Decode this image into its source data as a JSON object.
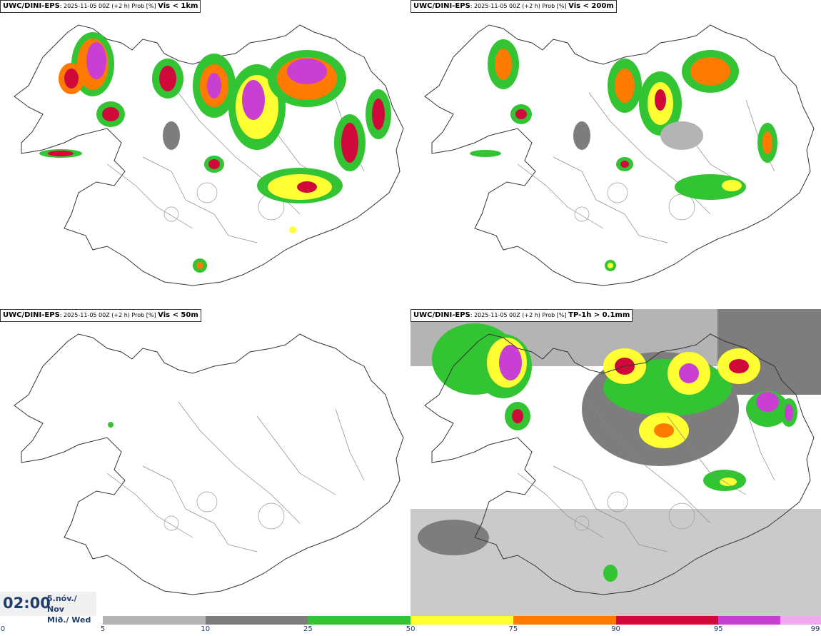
{
  "panels": [
    {
      "model": "UWC/DINI-EPS",
      "meta": ": 2025-11-05 00Z (+2 h) Prob [%] ",
      "variable": "Vis < 1km"
    },
    {
      "model": "UWC/DINI-EPS",
      "meta": ": 2025-11-05 00Z (+2 h) Prob [%] ",
      "variable": "Vis < 200m"
    },
    {
      "model": "UWC/DINI-EPS",
      "meta": ": 2025-11-05 00Z (+2 h) Prob [%] ",
      "variable": "Vis < 50m"
    },
    {
      "model": "UWC/DINI-EPS",
      "meta": ": 2025-11-05 00Z (+2 h) Prob [%] ",
      "variable": "TP-1h > 0.1mm"
    }
  ],
  "time": {
    "clock": "02:00",
    "date_line1": "5.nóv./ Nov",
    "date_line2": "Mið./ Wed"
  },
  "colorbar": {
    "segments": [
      {
        "from": 5,
        "to": 10,
        "color": "#b4b4b4"
      },
      {
        "from": 10,
        "to": 25,
        "color": "#7d7d7d"
      },
      {
        "from": 25,
        "to": 50,
        "color": "#33c433"
      },
      {
        "from": 50,
        "to": 75,
        "color": "#ffff33"
      },
      {
        "from": 75,
        "to": 90,
        "color": "#ff7a00"
      },
      {
        "from": 90,
        "to": 95,
        "color": "#d1093a"
      },
      {
        "from": 95,
        "to": 99,
        "color": "#c93fd1"
      },
      {
        "from": 99,
        "to": 100,
        "color": "#f0a8f0"
      }
    ],
    "ticks": [
      "0",
      "5",
      "10",
      "25",
      "50",
      "75",
      "90",
      "95",
      "99"
    ]
  }
}
